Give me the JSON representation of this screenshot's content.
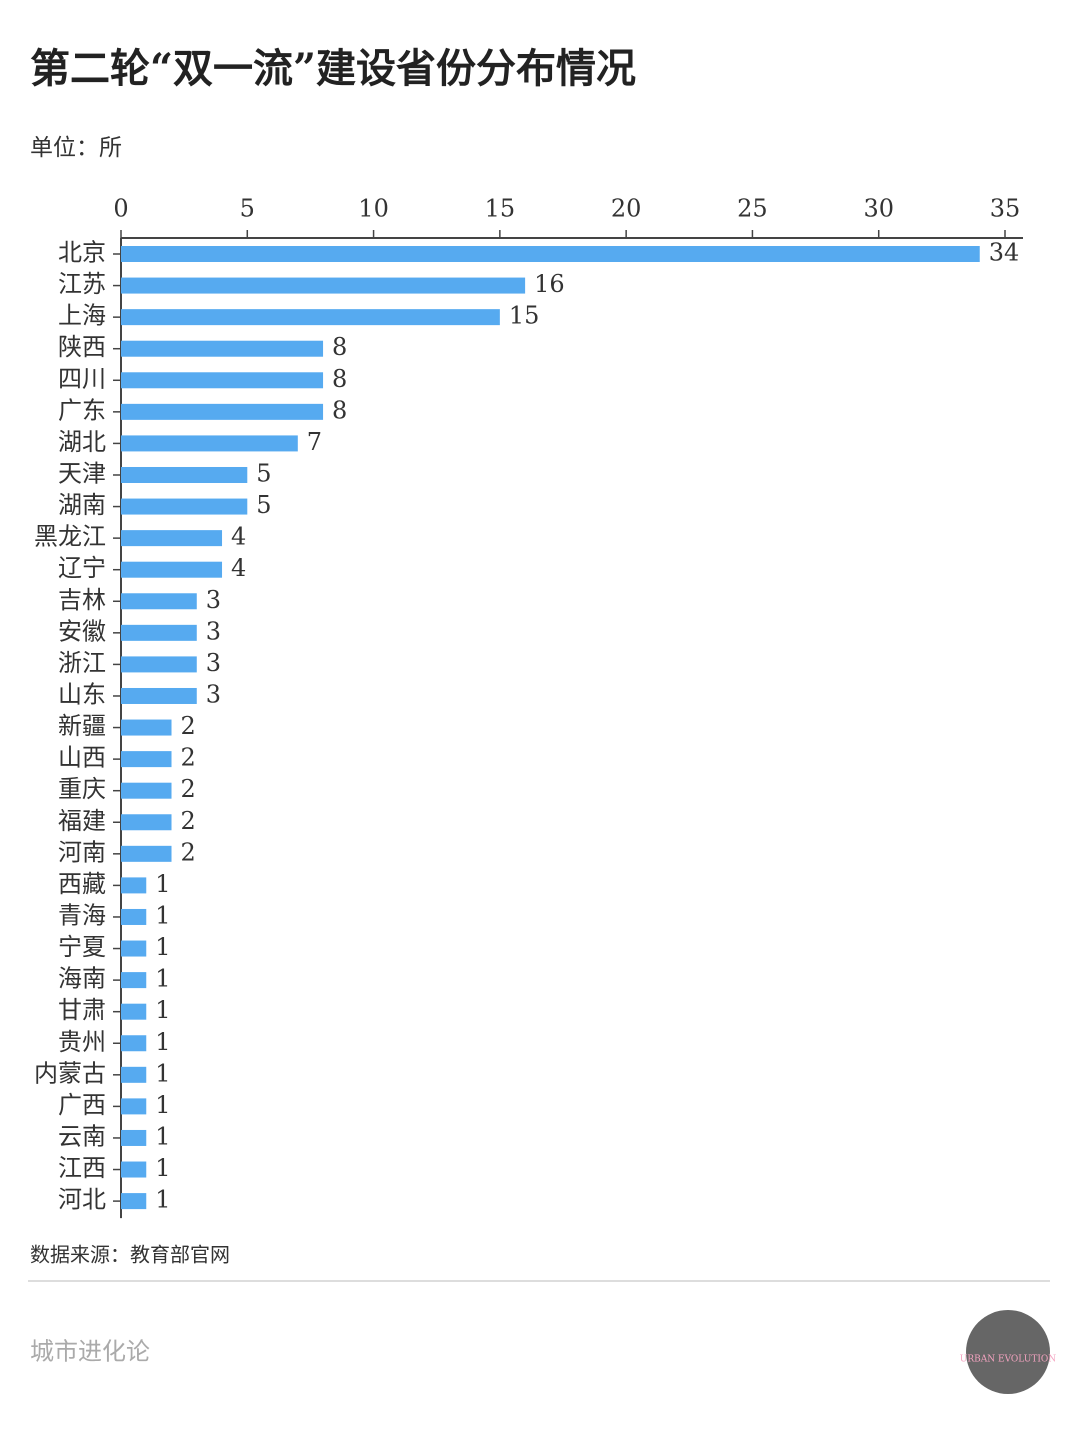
{
  "chart_data": {
    "type": "bar",
    "orientation": "horizontal",
    "title": "第二轮“双一流”建设省份分布情况",
    "subtitle": "单位：所",
    "categories": [
      "北京",
      "江苏",
      "上海",
      "陕西",
      "四川",
      "广东",
      "湖北",
      "天津",
      "湖南",
      "黑龙江",
      "辽宁",
      "吉林",
      "安徽",
      "浙江",
      "山东",
      "新疆",
      "山西",
      "重庆",
      "福建",
      "河南",
      "西藏",
      "青海",
      "宁夏",
      "海南",
      "甘肃",
      "贵州",
      "内蒙古",
      "广西",
      "云南",
      "江西",
      "河北"
    ],
    "values": [
      34,
      16,
      15,
      8,
      8,
      8,
      7,
      5,
      5,
      4,
      4,
      3,
      3,
      3,
      3,
      2,
      2,
      2,
      2,
      2,
      1,
      1,
      1,
      1,
      1,
      1,
      1,
      1,
      1,
      1,
      1
    ],
    "color": "#56aaf0",
    "xlim": [
      0,
      35
    ],
    "xticks": [
      0,
      5,
      10,
      15,
      20,
      25,
      30,
      35
    ],
    "grid": false
  },
  "source": "数据来源：教育部官网",
  "footer": "城市进化论",
  "logo_text": "URBAN EVOLUTION"
}
